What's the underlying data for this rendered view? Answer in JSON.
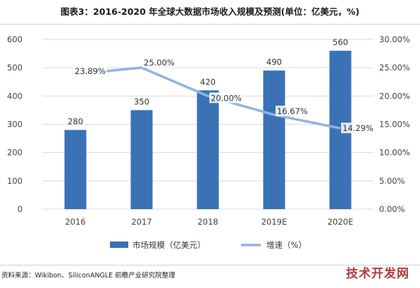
{
  "header": {
    "title": "图表3：2016-2020 年全球大数据市场收入规模及预测(单位：亿美元，%)"
  },
  "footer": {
    "source": "资料来源：Wikibon、SiliconANGLE 前瞻产业研究院整理"
  },
  "watermark": {
    "badge": "技术开发网"
  },
  "colors": {
    "bar": "#3a72b5",
    "line": "#8fb3e0",
    "grid": "#d9d9d9",
    "label_bg": "#ffffff"
  },
  "chart_data": {
    "type": "bar",
    "categories": [
      "2016",
      "2017",
      "2018",
      "2019E",
      "2020E"
    ],
    "series": [
      {
        "name": "市场规模（亿美元）",
        "type": "bar",
        "axis": "left",
        "values": [
          280,
          350,
          420,
          490,
          560
        ]
      },
      {
        "name": "增速（%）",
        "type": "line",
        "axis": "right",
        "values": [
          23.89,
          25.0,
          20.0,
          16.67,
          14.29
        ]
      }
    ],
    "bar_labels": [
      "280",
      "350",
      "420",
      "490",
      "560"
    ],
    "line_labels": [
      "23.89%",
      "25.00%",
      "20.00%",
      "16.67%",
      "14.29%"
    ],
    "y_left": {
      "ylim": [
        0,
        600
      ],
      "ticks": [
        "0",
        "100",
        "200",
        "300",
        "400",
        "500",
        "600"
      ]
    },
    "y_right": {
      "ylim": [
        0,
        30
      ],
      "ticks": [
        "0.00%",
        "5.00%",
        "10.00%",
        "15.00%",
        "20.00%",
        "25.00%",
        "30.00%"
      ]
    },
    "grid": true,
    "legend_position": "bottom"
  }
}
